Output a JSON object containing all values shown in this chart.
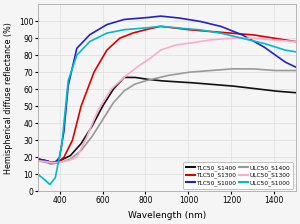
{
  "xlabel": "Wavelength (nm)",
  "ylabel": "Hemispherical diffuse reflectance (%)",
  "xlim": [
    300,
    1500
  ],
  "ylim": [
    0,
    110
  ],
  "yticks": [
    0,
    10,
    20,
    30,
    40,
    50,
    60,
    70,
    80,
    90,
    100
  ],
  "xticks": [
    400,
    600,
    800,
    1000,
    1200,
    1400
  ],
  "series": {
    "TLC50_S1400": {
      "color": "#111111",
      "linewidth": 1.2
    },
    "TLC50_S1300": {
      "color": "#dd0000",
      "linewidth": 1.2
    },
    "TLC50_S1000": {
      "color": "#2222cc",
      "linewidth": 1.2
    },
    "ULC50_S1400": {
      "color": "#999999",
      "linewidth": 1.2
    },
    "ULC50_S1300": {
      "color": "#ffaacc",
      "linewidth": 1.2
    },
    "ULC50_S1000": {
      "color": "#00bbcc",
      "linewidth": 1.2
    }
  },
  "background_color": "#f5f5f5",
  "grid_color": "#dddddd"
}
